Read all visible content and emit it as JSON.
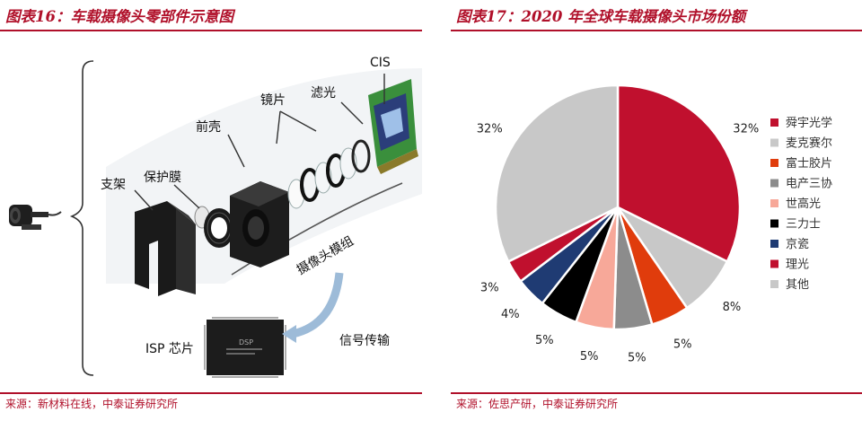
{
  "left": {
    "title": "图表16：车载摄像头零部件示意图",
    "source": "来源：新材料在线，中泰证券研究所",
    "labels": {
      "cis": "CIS",
      "filter": "滤光",
      "lens": "镜片",
      "front_shell": "前壳",
      "protective_film": "保护膜",
      "bracket": "支架",
      "module": "摄像头模组",
      "signal": "信号传输",
      "isp": "ISP 芯片",
      "chip_brand": "DSP"
    }
  },
  "right": {
    "title": "图表17：2020 年全球车载摄像头市场份额",
    "source": "来源：佐思产研，中泰证券研究所"
  },
  "chart_data": {
    "type": "pie",
    "title": "2020 年全球车载摄像头市场份额",
    "unit": "%",
    "slices": [
      {
        "name": "舜宇光学",
        "value": 32,
        "label": "32%",
        "color": "#c0102e"
      },
      {
        "name": "麦克赛尔",
        "value": 8,
        "label": "8%",
        "color": "#c8c8c8"
      },
      {
        "name": "富士胶片",
        "value": 5,
        "label": "5%",
        "color": "#e03c0c"
      },
      {
        "name": "电产三协",
        "value": 5,
        "label": "5%",
        "color": "#8c8c8c"
      },
      {
        "name": "世高光",
        "value": 5,
        "label": "5%",
        "color": "#f7a899"
      },
      {
        "name": "三力士",
        "value": 5,
        "label": "5%",
        "color": "#000000"
      },
      {
        "name": "京瓷",
        "value": 4,
        "label": "4%",
        "color": "#1f3b73"
      },
      {
        "name": "理光",
        "value": 3,
        "label": "3%",
        "color": "#c0102e"
      },
      {
        "name": "其他",
        "value": 32,
        "label": "32%",
        "color": "#c8c8c8"
      }
    ],
    "legend_position": "right",
    "start_angle_deg": 0,
    "direction": "clockwise"
  }
}
